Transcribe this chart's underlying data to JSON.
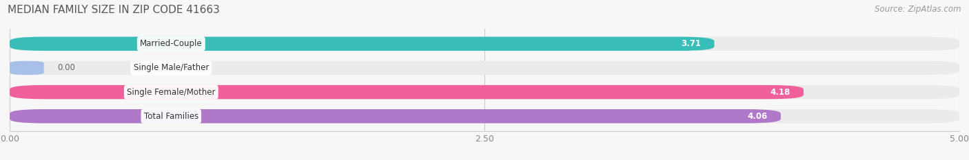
{
  "title": "MEDIAN FAMILY SIZE IN ZIP CODE 41663",
  "source": "Source: ZipAtlas.com",
  "categories": [
    "Married-Couple",
    "Single Male/Father",
    "Single Female/Mother",
    "Total Families"
  ],
  "values": [
    3.71,
    0.0,
    4.18,
    4.06
  ],
  "bar_colors": [
    "#39bdb8",
    "#a8c0e8",
    "#f0609a",
    "#b078c8"
  ],
  "bar_height": 0.58,
  "xlim": [
    0,
    5.0
  ],
  "xticks": [
    0.0,
    2.5,
    5.0
  ],
  "xtick_labels": [
    "0.00",
    "2.50",
    "5.00"
  ],
  "bg_color": "#f7f7f7",
  "bar_bg_color": "#ebebeb",
  "title_fontsize": 11,
  "label_fontsize": 8.5,
  "value_fontsize": 8.5,
  "source_fontsize": 8.5,
  "tick_fontsize": 9
}
